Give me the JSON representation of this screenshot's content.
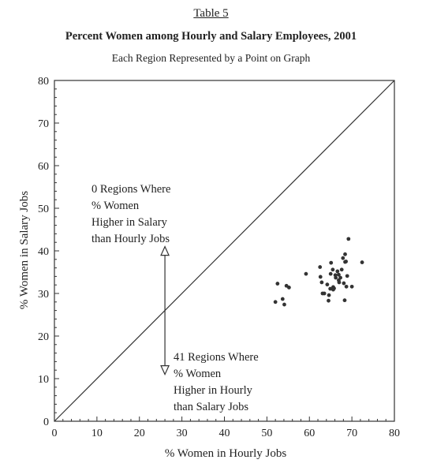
{
  "header": {
    "table_label": "Table 5",
    "title": "Percent Women among Hourly and Salary Employees, 2001",
    "subtitle": "Each Region Represented by a Point on Graph"
  },
  "annotations": {
    "upper": [
      "0 Regions Where",
      "% Women",
      "Higher in Salary",
      "than Hourly Jobs"
    ],
    "lower": [
      "41 Regions Where",
      "% Women",
      "Higher in Hourly",
      "than Salary Jobs"
    ]
  },
  "colors": {
    "axis": "#333333",
    "points": "#333333"
  },
  "chart_data": {
    "type": "scatter",
    "title": "Percent Women among Hourly and Salary Employees, 2001",
    "subtitle": "Each Region Represented by a Point on Graph",
    "xlabel": "% Women in Hourly Jobs",
    "ylabel": "% Women in Salary Jobs",
    "xlim": [
      0,
      80
    ],
    "ylim": [
      0,
      80
    ],
    "xticks": [
      0,
      10,
      20,
      30,
      40,
      50,
      60,
      70,
      80
    ],
    "yticks": [
      0,
      10,
      20,
      30,
      40,
      50,
      60,
      70,
      80
    ],
    "grid": false,
    "reference_line": {
      "type": "diagonal",
      "from": [
        0,
        0
      ],
      "to": [
        80,
        80
      ]
    },
    "points": [
      {
        "x": 52.0,
        "y": 28.0
      },
      {
        "x": 52.5,
        "y": 32.3
      },
      {
        "x": 53.7,
        "y": 28.7
      },
      {
        "x": 54.1,
        "y": 27.4
      },
      {
        "x": 54.6,
        "y": 31.8
      },
      {
        "x": 55.2,
        "y": 31.4
      },
      {
        "x": 59.2,
        "y": 34.6
      },
      {
        "x": 62.5,
        "y": 36.2
      },
      {
        "x": 62.6,
        "y": 33.9
      },
      {
        "x": 62.9,
        "y": 32.6
      },
      {
        "x": 63.1,
        "y": 30.0
      },
      {
        "x": 63.5,
        "y": 30.0
      },
      {
        "x": 64.2,
        "y": 32.1
      },
      {
        "x": 64.5,
        "y": 28.3
      },
      {
        "x": 64.6,
        "y": 29.6
      },
      {
        "x": 64.9,
        "y": 31.1
      },
      {
        "x": 65.0,
        "y": 34.6
      },
      {
        "x": 65.1,
        "y": 37.2
      },
      {
        "x": 65.5,
        "y": 35.6
      },
      {
        "x": 65.6,
        "y": 31.5
      },
      {
        "x": 65.8,
        "y": 31.2
      },
      {
        "x": 66.1,
        "y": 34.3
      },
      {
        "x": 66.2,
        "y": 33.7
      },
      {
        "x": 66.6,
        "y": 35.2
      },
      {
        "x": 66.9,
        "y": 33.1
      },
      {
        "x": 66.9,
        "y": 34.4
      },
      {
        "x": 67.0,
        "y": 32.6
      },
      {
        "x": 67.3,
        "y": 33.7
      },
      {
        "x": 67.6,
        "y": 35.6
      },
      {
        "x": 67.9,
        "y": 38.3
      },
      {
        "x": 68.1,
        "y": 32.4
      },
      {
        "x": 68.3,
        "y": 28.4
      },
      {
        "x": 68.4,
        "y": 37.4
      },
      {
        "x": 68.4,
        "y": 39.2
      },
      {
        "x": 68.6,
        "y": 37.5
      },
      {
        "x": 68.7,
        "y": 31.6
      },
      {
        "x": 68.9,
        "y": 34.1
      },
      {
        "x": 69.2,
        "y": 42.8
      },
      {
        "x": 70.0,
        "y": 31.6
      },
      {
        "x": 72.4,
        "y": 37.3
      },
      {
        "x": 65.6,
        "y": 30.9
      }
    ],
    "arrow": {
      "x": 26,
      "from_y": 41,
      "to_y": 11,
      "direction": "both"
    }
  }
}
